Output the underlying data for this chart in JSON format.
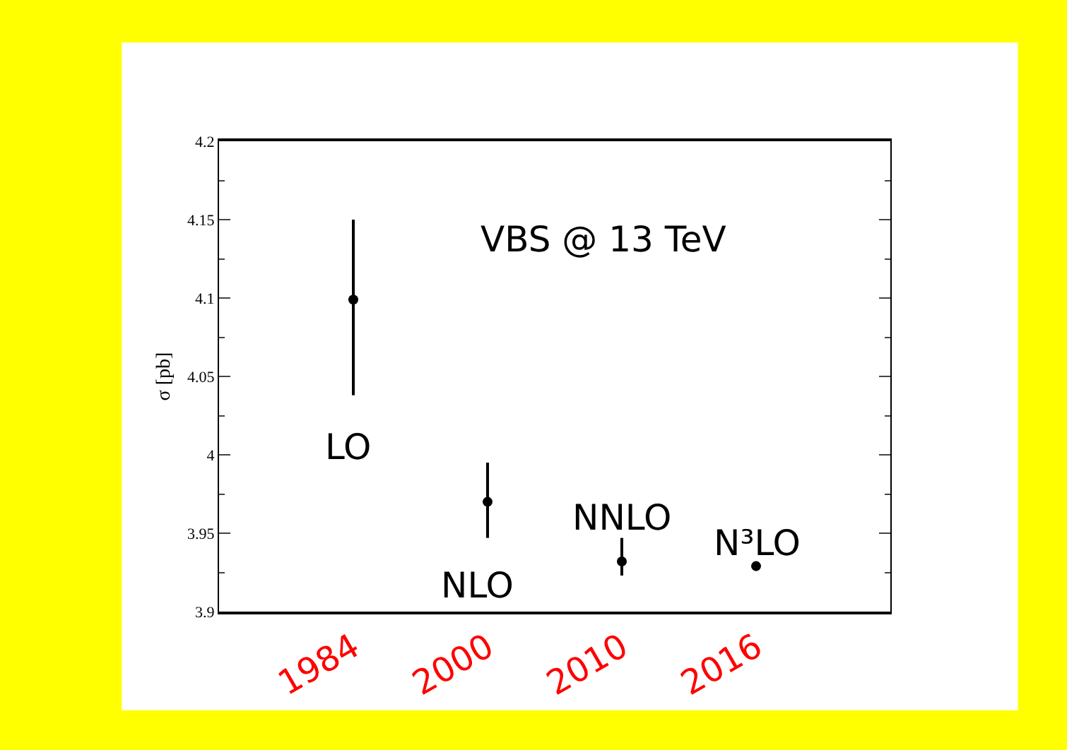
{
  "chart_data": {
    "type": "scatter",
    "title": "VBS @ 13 TeV",
    "ylabel": "σ [pb]",
    "categories": [
      "1984",
      "2000",
      "2010",
      "2016"
    ],
    "values": [
      4.099,
      3.97,
      3.932,
      3.929
    ],
    "errors": [
      [
        4.038,
        4.15
      ],
      [
        3.947,
        3.995
      ],
      [
        3.923,
        3.947
      ],
      [
        3.926,
        3.931
      ]
    ],
    "color": "#000000",
    "marker": "circle",
    "ylim": [
      3.9,
      4.2
    ],
    "yticks": [
      3.9,
      3.95,
      4,
      4.05,
      4.1,
      4.15,
      4.2
    ],
    "annotations": [
      "LO",
      "NLO",
      "NNLO",
      "N³LO"
    ],
    "legend": false
  }
}
